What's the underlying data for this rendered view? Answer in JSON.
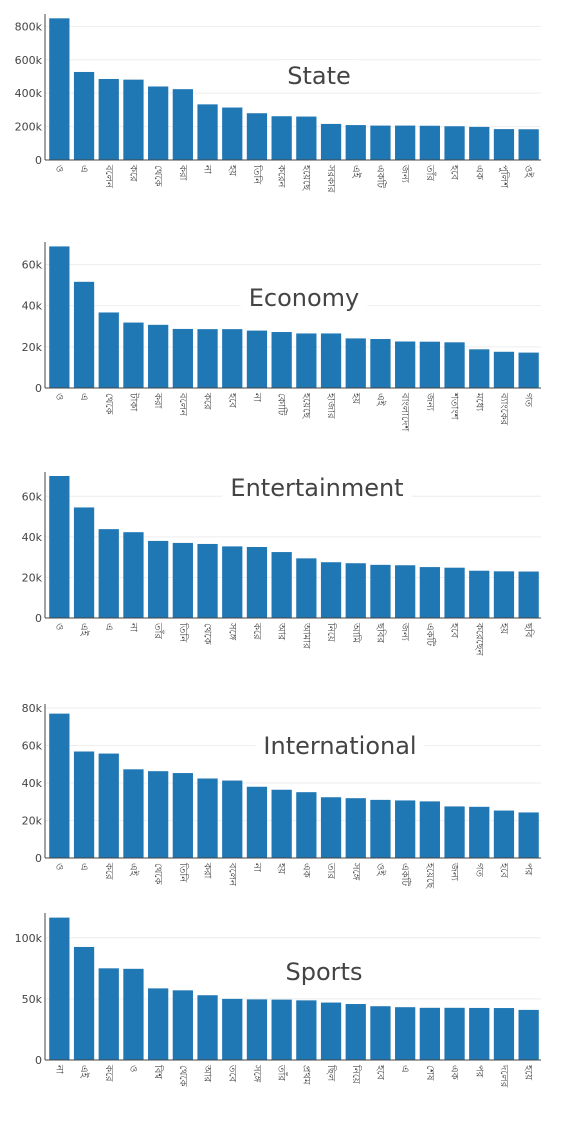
{
  "colors": {
    "bar": "#1f77b4",
    "grid": "#eeeeee",
    "axis": "#444444",
    "text": "#444444"
  },
  "chart_data": [
    {
      "type": "bar",
      "title": "State",
      "ylim": [
        0,
        850000
      ],
      "yticks": [
        0,
        200000,
        400000,
        600000,
        800000
      ],
      "ytick_labels": [
        "0",
        "200k",
        "400k",
        "600k",
        "800k"
      ],
      "grid": true,
      "categories": [
        "ও",
        "এ",
        "বলেন",
        "করে",
        "থেকে",
        "করা",
        "না",
        "হয়",
        "তিনি",
        "করেন",
        "হয়েছে",
        "সরকার",
        "এই",
        "একটি",
        "জন্য",
        "তাঁর",
        "হবে",
        "এক",
        "পুলিশ",
        "ওই"
      ],
      "values": [
        848000,
        527000,
        485000,
        481000,
        440000,
        424000,
        333000,
        314000,
        280000,
        262000,
        260000,
        216000,
        209000,
        206000,
        206000,
        205000,
        202000,
        198000,
        185000,
        184000
      ]
    },
    {
      "type": "bar",
      "title": "Economy",
      "ylim": [
        0,
        69000
      ],
      "yticks": [
        0,
        20000,
        40000,
        60000
      ],
      "ytick_labels": [
        "0",
        "20k",
        "40k",
        "60k"
      ],
      "grid": true,
      "categories": [
        "ও",
        "এ",
        "থেকে",
        "টাকা",
        "করা",
        "বলেন",
        "করে",
        "হবে",
        "না",
        "কোটি",
        "হয়েছে",
        "হাজার",
        "হয়",
        "এই",
        "বাংলাদেশ",
        "জন্য",
        "শতাংশ",
        "মধ্যে",
        "ব্যাংকের",
        "গত"
      ],
      "values": [
        68800,
        51600,
        36700,
        31800,
        30700,
        28700,
        28600,
        28600,
        27900,
        27200,
        26500,
        26500,
        24100,
        23800,
        22600,
        22500,
        22200,
        18800,
        17600,
        17200
      ]
    },
    {
      "type": "bar",
      "title": "Entertainment",
      "ylim": [
        0,
        70000
      ],
      "yticks": [
        0,
        20000,
        40000,
        60000
      ],
      "ytick_labels": [
        "0",
        "20k",
        "40k",
        "60k"
      ],
      "grid": true,
      "categories": [
        "ও",
        "এই",
        "এ",
        "না",
        "তাঁর",
        "তিনি",
        "থেকে",
        "সঙ্গে",
        "করে",
        "আর",
        "আমার",
        "নিয়ে",
        "আমি",
        "ছবির",
        "জন্য",
        "একটি",
        "হবে",
        "করেছেন",
        "হয়",
        "ছবি"
      ],
      "values": [
        70000,
        54500,
        43800,
        42300,
        38000,
        37000,
        36500,
        35300,
        35000,
        32500,
        29400,
        27500,
        27000,
        26200,
        26000,
        25100,
        24800,
        23300,
        23000,
        22900
      ]
    },
    {
      "type": "bar",
      "title": "International",
      "ylim": [
        0,
        80000
      ],
      "yticks": [
        0,
        20000,
        40000,
        60000,
        80000
      ],
      "ytick_labels": [
        "0",
        "20k",
        "40k",
        "60k",
        "80k"
      ],
      "grid": true,
      "categories": [
        "ও",
        "এ",
        "করে",
        "এই",
        "থেকে",
        "তিনি",
        "করা",
        "বলেন",
        "না",
        "হয়",
        "এক",
        "তার",
        "সঙ্গে",
        "ওই",
        "একটি",
        "হয়েছে",
        "জন্য",
        "গত",
        "হবে",
        "পর"
      ],
      "values": [
        77000,
        56800,
        55700,
        47300,
        46300,
        45300,
        42400,
        41300,
        38000,
        36400,
        35100,
        32400,
        31900,
        31000,
        30700,
        30200,
        27500,
        27300,
        25300,
        24300
      ]
    },
    {
      "type": "bar",
      "title": "Sports",
      "ylim": [
        0,
        117000
      ],
      "yticks": [
        0,
        50000,
        100000
      ],
      "ytick_labels": [
        "0",
        "50k",
        "100k"
      ],
      "grid": true,
      "categories": [
        "না",
        "এই",
        "করে",
        "ও",
        "বিশ্ব",
        "থেকে",
        "আর",
        "তবে",
        "সঙ্গে",
        "তাঁর",
        "প্রথম",
        "ছিল",
        "নিয়ে",
        "হবে",
        "এ",
        "শেষ",
        "এক",
        "পর",
        "দলের",
        "হয়ে"
      ],
      "values": [
        116500,
        92500,
        75000,
        74600,
        58600,
        57000,
        53000,
        50000,
        49600,
        49400,
        48800,
        47000,
        45800,
        44000,
        43200,
        42700,
        42700,
        42600,
        42500,
        41000
      ]
    }
  ]
}
